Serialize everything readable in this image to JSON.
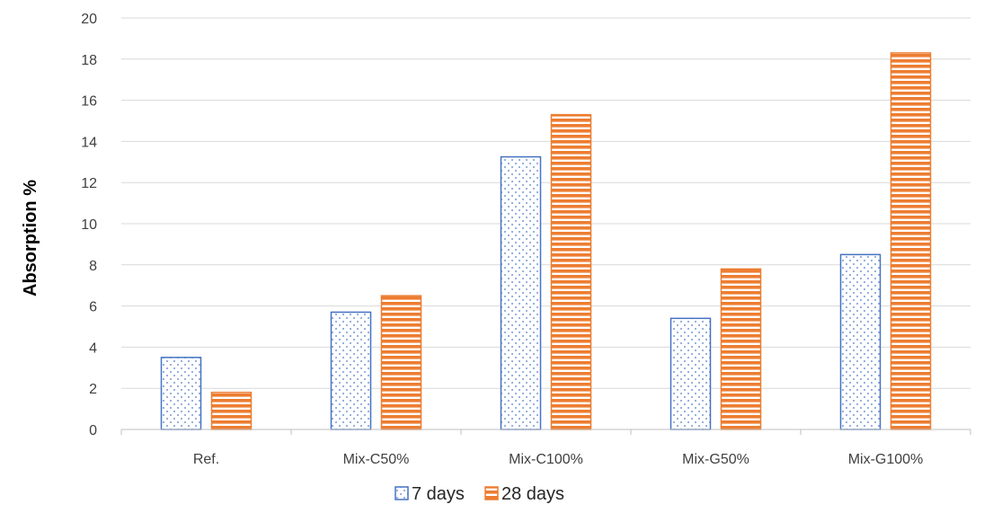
{
  "chart_data": {
    "type": "bar",
    "title": "",
    "xlabel": "",
    "ylabel": "Absorption %",
    "ylim": [
      0,
      20
    ],
    "yticks": [
      0,
      2,
      4,
      6,
      8,
      10,
      12,
      14,
      16,
      18,
      20
    ],
    "grid": "horizontal",
    "legend": "bottom",
    "categories": [
      "Ref.",
      "Mix-C50%",
      "Mix-C100%",
      "Mix-G50%",
      "Mix-G100%"
    ],
    "series": [
      {
        "name": "7 days",
        "values": [
          3.5,
          5.7,
          13.25,
          5.4,
          8.5
        ],
        "color": "#4472C4",
        "pattern": "dots"
      },
      {
        "name": "28 days",
        "values": [
          1.8,
          6.5,
          15.3,
          7.8,
          18.3
        ],
        "color": "#ED7D31",
        "pattern": "horizontal-stripes"
      }
    ]
  }
}
